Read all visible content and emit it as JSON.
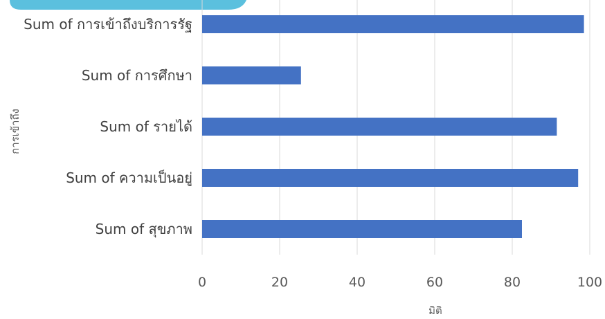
{
  "chart_data": {
    "type": "bar",
    "orientation": "horizontal",
    "categories": [
      "Sum of การเข้าถึงบริการรัฐ",
      "Sum of การศึกษา",
      "Sum of รายได้",
      "Sum of ความเป็นอยู่",
      "Sum of สุขภาพ"
    ],
    "values": [
      98.5,
      25.5,
      91.5,
      97,
      82.5
    ],
    "xlabel": "มิติ",
    "ylabel": "การเข้าถึง",
    "xlim": [
      0,
      100
    ],
    "xticks": [
      "0",
      "20",
      "40",
      "60",
      "80",
      "100"
    ],
    "grid": true,
    "bar_color": "#4472c4",
    "badge_color": "#5bc0de"
  }
}
